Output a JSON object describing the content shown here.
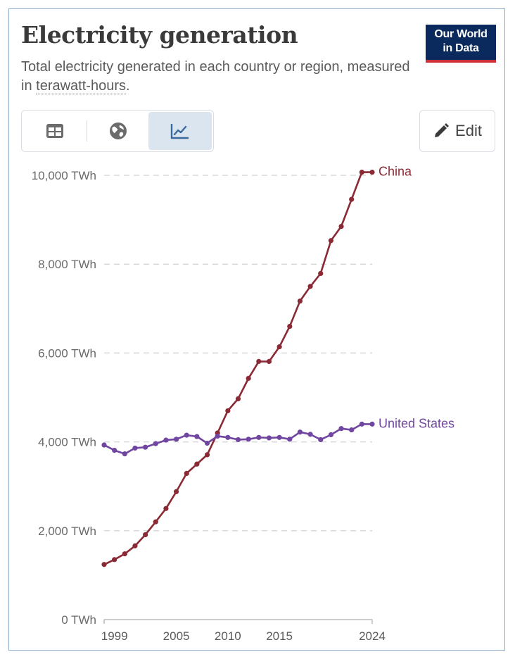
{
  "header": {
    "title": "Electricity generation",
    "subtitle_text": "Total electricity generated in each country or region, measured in",
    "subtitle_link": "terawatt-hours",
    "subtitle_end": "."
  },
  "logo": {
    "line1": "Our World",
    "line2": "in Data"
  },
  "tabs": [
    {
      "name": "table",
      "icon": "table-icon",
      "active": false
    },
    {
      "name": "map",
      "icon": "globe-icon",
      "active": false
    },
    {
      "name": "chart",
      "icon": "line-chart-icon",
      "active": true
    }
  ],
  "edit": {
    "label": "Edit",
    "icon": "pencil-icon"
  },
  "colors": {
    "china": "#8a2a35",
    "united_states": "#7046a0",
    "grid": "#d9d9d9",
    "logo_bg": "#0a2a5e",
    "logo_accent": "#d0303a"
  },
  "chart_data": {
    "type": "line",
    "ylim": [
      0,
      10000
    ],
    "y_ticks": [
      0,
      2000,
      4000,
      6000,
      8000,
      10000
    ],
    "y_tick_labels": [
      "0 TWh",
      "2,000 TWh",
      "4,000 TWh",
      "6,000 TWh",
      "8,000 TWh",
      "10,000 TWh"
    ],
    "xlim": [
      1998,
      2024
    ],
    "x_ticks": [
      1999,
      2005,
      2010,
      2015,
      2024
    ],
    "x_tick_labels": [
      "1999",
      "2005",
      "2010",
      "2015",
      "2024"
    ],
    "grid": true,
    "series": [
      {
        "name": "China",
        "color": "#8a2a35",
        "x": [
          1998,
          1999,
          2000,
          2001,
          2002,
          2003,
          2004,
          2005,
          2006,
          2007,
          2008,
          2009,
          2010,
          2011,
          2012,
          2013,
          2014,
          2015,
          2016,
          2017,
          2018,
          2019,
          2020,
          2021,
          2022,
          2023,
          2024
        ],
        "y": [
          1240,
          1350,
          1480,
          1660,
          1910,
          2200,
          2500,
          2880,
          3290,
          3500,
          3710,
          4200,
          4700,
          4970,
          5430,
          5810,
          5810,
          6140,
          6600,
          7170,
          7500,
          7790,
          8530,
          8850,
          9460,
          10070,
          10070
        ]
      },
      {
        "name": "United States",
        "color": "#7046a0",
        "x": [
          1998,
          1999,
          2000,
          2001,
          2002,
          2003,
          2004,
          2005,
          2006,
          2007,
          2008,
          2009,
          2010,
          2011,
          2012,
          2013,
          2014,
          2015,
          2016,
          2017,
          2018,
          2019,
          2020,
          2021,
          2022,
          2023,
          2024
        ],
        "y": [
          3930,
          3810,
          3730,
          3860,
          3880,
          3960,
          4040,
          4060,
          4150,
          4120,
          3970,
          4130,
          4100,
          4050,
          4060,
          4100,
          4090,
          4100,
          4060,
          4220,
          4170,
          4050,
          4160,
          4300,
          4270,
          4400,
          4400
        ]
      }
    ]
  }
}
